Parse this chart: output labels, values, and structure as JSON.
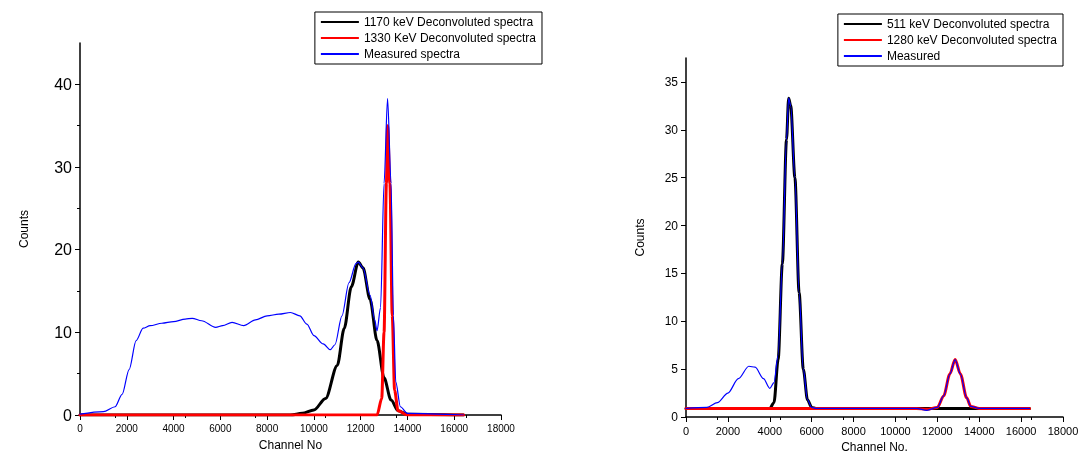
{
  "chart_data": [
    {
      "type": "line",
      "xlabel": "Channel No",
      "ylabel": "Counts",
      "xlim": [
        0,
        18000
      ],
      "xticks": [
        0,
        2000,
        4000,
        6000,
        8000,
        10000,
        12000,
        14000,
        16000,
        18000
      ],
      "ylim": [
        0,
        45
      ],
      "yticks": [
        0,
        10,
        20,
        30,
        40
      ],
      "grid": false,
      "legend": "top right",
      "marker": "none",
      "line_style": "solid",
      "series": [
        {
          "name": "1170 keV Deconvoluted spectra",
          "color": "#000000",
          "x": [
            0,
            9000,
            9500,
            10000,
            10500,
            11000,
            11300,
            11600,
            11900,
            12100,
            12400,
            12700,
            13000,
            13300,
            13600,
            14000,
            16400
          ],
          "values": [
            0,
            0,
            0.2,
            0.6,
            2,
            6,
            10.5,
            15.5,
            18.5,
            17.8,
            14,
            9,
            4.5,
            1.8,
            0.5,
            0.1,
            0
          ]
        },
        {
          "name": "1330 KeV Deconvoluted spectra",
          "color": "#ff0000",
          "x": [
            0,
            12700,
            12900,
            13000,
            13100,
            13150,
            13250,
            13350,
            13450,
            13600,
            14000,
            16400
          ],
          "values": [
            0,
            0,
            2,
            10,
            28,
            35,
            28,
            12,
            3,
            0.5,
            0,
            0
          ]
        },
        {
          "name": "Measured spectra",
          "color": "#0000ff",
          "x": [
            0,
            1000,
            1500,
            1800,
            2100,
            2400,
            2700,
            3000,
            3500,
            4000,
            4500,
            4800,
            5200,
            5800,
            6100,
            6500,
            7000,
            7500,
            8000,
            8500,
            9000,
            9400,
            9700,
            10000,
            10400,
            10700,
            10900,
            11200,
            11500,
            11800,
            11900,
            12100,
            12400,
            12600,
            12700,
            12850,
            13000,
            13150,
            13300,
            13400,
            13500,
            13700,
            14000,
            16400
          ],
          "values": [
            0.1,
            0.4,
            1,
            2.5,
            5.5,
            9,
            10.5,
            10.8,
            11.1,
            11.3,
            11.6,
            11.7,
            11.4,
            10.6,
            10.8,
            11.2,
            10.8,
            11.5,
            12,
            12.2,
            12.4,
            12,
            11,
            9.6,
            8.6,
            7.9,
            8.5,
            12,
            16,
            18.3,
            18.5,
            17.8,
            14.5,
            11.5,
            10.2,
            13,
            28,
            38.3,
            28,
            12,
            4,
            1,
            0.2,
            0
          ]
        }
      ]
    },
    {
      "type": "line",
      "xlabel": "Channel No.",
      "ylabel": "Counts",
      "xlim": [
        0,
        18000
      ],
      "xticks": [
        0,
        2000,
        4000,
        6000,
        8000,
        10000,
        12000,
        14000,
        16000,
        18000
      ],
      "ylim": [
        0,
        37.5
      ],
      "yticks": [
        0,
        5,
        10,
        15,
        20,
        25,
        30,
        35
      ],
      "grid": false,
      "legend": "top right",
      "marker": "none",
      "line_style": "solid",
      "series": [
        {
          "name": "511 keV Deconvoluted spectra",
          "color": "#000000",
          "x": [
            0,
            4000,
            4200,
            4400,
            4600,
            4800,
            4900,
            5000,
            5200,
            5400,
            5600,
            5800,
            6000,
            6200,
            16400
          ],
          "values": [
            0.9,
            0.9,
            1.5,
            6,
            16,
            29,
            33.3,
            32.5,
            25,
            13,
            5,
            1.8,
            1,
            0.9,
            0.9
          ]
        },
        {
          "name": "1280 keV Deconvoluted spectra",
          "color": "#ff0000",
          "x": [
            0,
            11000,
            11500,
            12000,
            12300,
            12600,
            12850,
            13100,
            13400,
            13600,
            14000,
            16400
          ],
          "values": [
            0.9,
            0.9,
            0.8,
            1,
            2.2,
            4.5,
            6,
            4.5,
            2,
            1.1,
            0.9,
            0.9
          ]
        },
        {
          "name": "Measured",
          "color": "#0000ff",
          "x": [
            0,
            1000,
            1500,
            2000,
            2500,
            3000,
            3300,
            3700,
            4000,
            4200,
            4400,
            4600,
            4800,
            4900,
            5000,
            5200,
            5400,
            5600,
            5800,
            6000,
            6200,
            11000,
            11500,
            12000,
            12300,
            12600,
            12850,
            13100,
            13400,
            13600,
            14000,
            16400
          ],
          "values": [
            0.9,
            1,
            1.5,
            2.5,
            4,
            5.3,
            5.2,
            4,
            3,
            3.6,
            6.5,
            16,
            29,
            33.3,
            32.5,
            25,
            13,
            5,
            1.8,
            1,
            0.9,
            0.9,
            0.7,
            1,
            2.2,
            4.5,
            6,
            4.5,
            2,
            1.1,
            0.9,
            0.9
          ]
        }
      ]
    }
  ]
}
